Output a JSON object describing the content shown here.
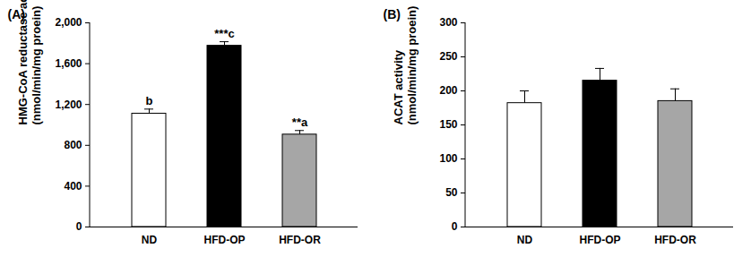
{
  "chart_data": [
    {
      "type": "bar",
      "title": "(A)",
      "ylabel": "HMG-CoA reductase activity\n(nmol/min/mg proein)",
      "categories": [
        "ND",
        "HFD-OP",
        "HFD-OR"
      ],
      "values": [
        1110,
        1775,
        905
      ],
      "errors": [
        45,
        40,
        40
      ],
      "annotations": [
        "b",
        "***c",
        "**a"
      ],
      "colors": [
        "#ffffff",
        "#000000",
        "#a6a6a6"
      ],
      "ylim": [
        0,
        2000
      ],
      "yticks": [
        0,
        400,
        800,
        {
          "value": 1200,
          "label": "1,200"
        },
        {
          "value": 1600,
          "label": "1,600"
        },
        {
          "value": 2000,
          "label": "2,000"
        }
      ],
      "grid": false
    },
    {
      "type": "bar",
      "title": "(B)",
      "ylabel": "ACAT activity\n(nmol/min/mg proein)",
      "categories": [
        "ND",
        "HFD-OP",
        "HFD-OR"
      ],
      "values": [
        182,
        215,
        185
      ],
      "errors": [
        18,
        18,
        18
      ],
      "colors": [
        "#ffffff",
        "#000000",
        "#a6a6a6"
      ],
      "ylim": [
        0,
        300
      ],
      "yticks": [
        0,
        50,
        100,
        150,
        200,
        250,
        300
      ],
      "grid": false
    }
  ]
}
